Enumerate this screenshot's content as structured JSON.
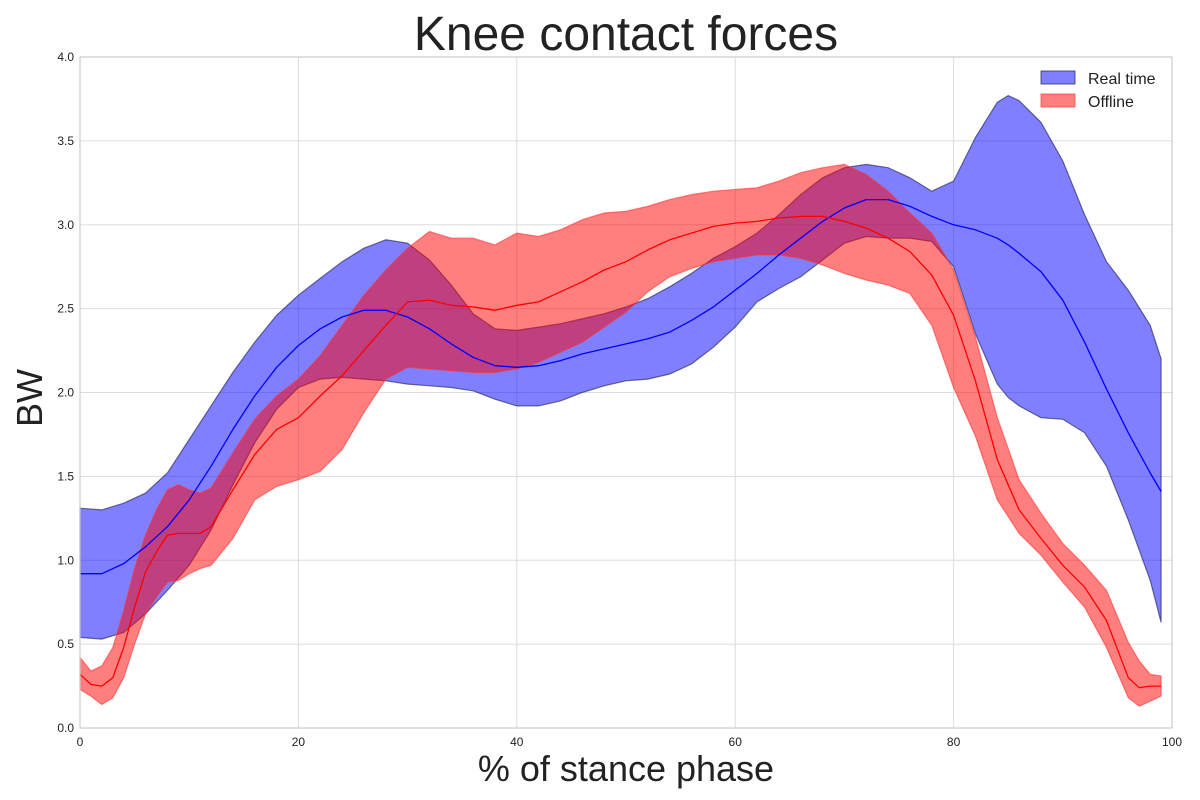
{
  "chart_data": {
    "type": "area",
    "title": "Knee contact forces",
    "xlabel": "% of stance phase",
    "ylabel": "BW",
    "xlim": [
      0,
      100
    ],
    "ylim": [
      0,
      4
    ],
    "xticks": [
      0,
      20,
      40,
      60,
      80,
      100
    ],
    "yticks": [
      0.0,
      0.5,
      1.0,
      1.5,
      2.0,
      2.5,
      3.0,
      3.5,
      4.0
    ],
    "ytick_labels": [
      "0.0",
      "0.5",
      "1.0",
      "1.5",
      "2.0",
      "2.5",
      "3.0",
      "3.5",
      "4.0"
    ],
    "grid": true,
    "legend_position": "top-right",
    "series": [
      {
        "name": "Real time",
        "color": "#0000ff",
        "fill": "#7f7fff",
        "x": [
          0,
          2,
          4,
          6,
          8,
          10,
          12,
          14,
          16,
          18,
          20,
          22,
          24,
          26,
          28,
          30,
          32,
          34,
          36,
          38,
          40,
          42,
          44,
          46,
          48,
          50,
          52,
          54,
          56,
          58,
          60,
          62,
          64,
          66,
          68,
          70,
          72,
          74,
          76,
          78,
          80,
          82,
          84,
          85,
          86,
          88,
          90,
          92,
          94,
          96,
          98,
          99
        ],
        "mean": [
          0.92,
          0.92,
          0.98,
          1.08,
          1.2,
          1.36,
          1.56,
          1.78,
          1.98,
          2.15,
          2.28,
          2.38,
          2.45,
          2.49,
          2.49,
          2.45,
          2.38,
          2.29,
          2.21,
          2.16,
          2.15,
          2.16,
          2.19,
          2.23,
          2.26,
          2.29,
          2.32,
          2.36,
          2.43,
          2.51,
          2.61,
          2.71,
          2.82,
          2.92,
          3.02,
          3.1,
          3.15,
          3.15,
          3.11,
          3.05,
          3.0,
          2.97,
          2.92,
          2.88,
          2.83,
          2.72,
          2.55,
          2.3,
          2.02,
          1.76,
          1.52,
          1.41
        ],
        "upper": [
          1.31,
          1.3,
          1.34,
          1.4,
          1.52,
          1.72,
          1.92,
          2.12,
          2.3,
          2.46,
          2.58,
          2.68,
          2.78,
          2.86,
          2.91,
          2.89,
          2.79,
          2.64,
          2.47,
          2.38,
          2.37,
          2.39,
          2.41,
          2.44,
          2.47,
          2.51,
          2.56,
          2.63,
          2.71,
          2.8,
          2.87,
          2.95,
          3.06,
          3.18,
          3.28,
          3.34,
          3.36,
          3.34,
          3.28,
          3.2,
          3.26,
          3.52,
          3.73,
          3.77,
          3.74,
          3.61,
          3.38,
          3.06,
          2.78,
          2.61,
          2.4,
          2.2
        ],
        "lower": [
          0.54,
          0.53,
          0.57,
          0.68,
          0.82,
          0.97,
          1.18,
          1.45,
          1.7,
          1.9,
          2.03,
          2.08,
          2.09,
          2.08,
          2.07,
          2.05,
          2.04,
          2.03,
          2.01,
          1.96,
          1.92,
          1.92,
          1.95,
          2.0,
          2.04,
          2.07,
          2.08,
          2.11,
          2.17,
          2.27,
          2.39,
          2.54,
          2.62,
          2.69,
          2.79,
          2.89,
          2.93,
          2.92,
          2.92,
          2.9,
          2.75,
          2.35,
          2.05,
          1.97,
          1.92,
          1.85,
          1.84,
          1.76,
          1.56,
          1.24,
          0.88,
          0.63
        ]
      },
      {
        "name": "Offline",
        "color": "#ff0000",
        "fill": "#ff7f7f",
        "x": [
          0,
          1,
          2,
          3,
          4,
          5,
          6,
          7,
          8,
          9,
          10,
          11,
          12,
          14,
          16,
          18,
          20,
          22,
          24,
          26,
          28,
          30,
          32,
          34,
          36,
          38,
          40,
          42,
          44,
          46,
          48,
          50,
          52,
          54,
          56,
          58,
          60,
          62,
          64,
          66,
          68,
          70,
          72,
          74,
          76,
          78,
          80,
          82,
          84,
          86,
          88,
          90,
          92,
          94,
          96,
          97,
          98,
          99
        ],
        "mean": [
          0.32,
          0.26,
          0.25,
          0.3,
          0.48,
          0.72,
          0.93,
          1.05,
          1.15,
          1.16,
          1.16,
          1.16,
          1.2,
          1.42,
          1.63,
          1.78,
          1.85,
          1.98,
          2.1,
          2.25,
          2.4,
          2.54,
          2.55,
          2.52,
          2.51,
          2.49,
          2.52,
          2.54,
          2.6,
          2.66,
          2.73,
          2.78,
          2.85,
          2.91,
          2.95,
          2.99,
          3.01,
          3.02,
          3.04,
          3.05,
          3.05,
          3.02,
          2.98,
          2.92,
          2.84,
          2.7,
          2.46,
          2.07,
          1.6,
          1.3,
          1.13,
          0.97,
          0.84,
          0.64,
          0.3,
          0.24,
          0.25,
          0.25
        ],
        "upper": [
          0.42,
          0.34,
          0.37,
          0.48,
          0.7,
          0.95,
          1.15,
          1.3,
          1.42,
          1.45,
          1.42,
          1.4,
          1.43,
          1.64,
          1.84,
          1.98,
          2.08,
          2.22,
          2.4,
          2.58,
          2.73,
          2.86,
          2.96,
          2.92,
          2.92,
          2.88,
          2.95,
          2.93,
          2.97,
          3.03,
          3.07,
          3.08,
          3.11,
          3.15,
          3.18,
          3.2,
          3.21,
          3.22,
          3.26,
          3.31,
          3.34,
          3.36,
          3.3,
          3.2,
          3.07,
          2.95,
          2.73,
          2.33,
          1.85,
          1.48,
          1.28,
          1.1,
          0.97,
          0.82,
          0.51,
          0.4,
          0.32,
          0.31
        ],
        "lower": [
          0.23,
          0.19,
          0.14,
          0.18,
          0.3,
          0.5,
          0.68,
          0.78,
          0.87,
          0.88,
          0.92,
          0.95,
          0.97,
          1.13,
          1.36,
          1.44,
          1.48,
          1.53,
          1.66,
          1.88,
          2.08,
          2.15,
          2.14,
          2.13,
          2.12,
          2.12,
          2.14,
          2.18,
          2.24,
          2.3,
          2.39,
          2.48,
          2.6,
          2.69,
          2.74,
          2.78,
          2.8,
          2.82,
          2.82,
          2.8,
          2.76,
          2.71,
          2.67,
          2.64,
          2.59,
          2.4,
          2.03,
          1.74,
          1.36,
          1.16,
          1.03,
          0.87,
          0.72,
          0.48,
          0.18,
          0.13,
          0.16,
          0.19
        ]
      }
    ]
  }
}
